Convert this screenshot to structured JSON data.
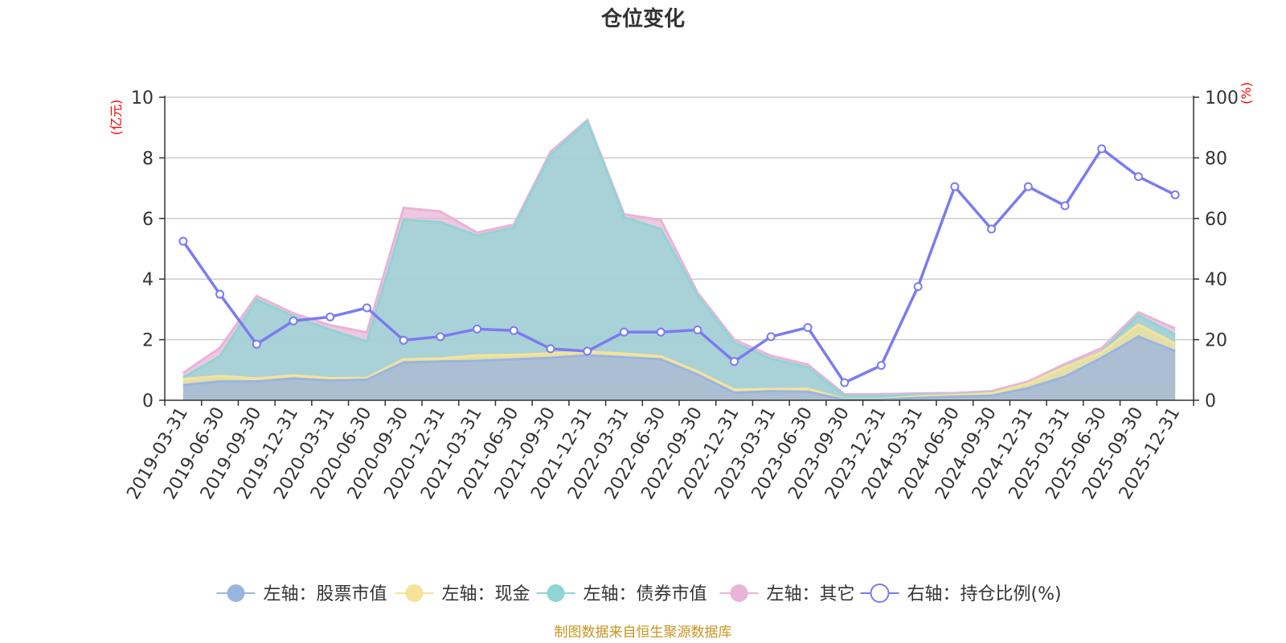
{
  "chart_data": {
    "type": "area",
    "title": "仓位变化",
    "left_axis_unit": "(亿元)",
    "right_axis_unit": "(%)",
    "ylim_left": [
      0,
      10
    ],
    "yticks_left": [
      "0",
      "2",
      "4",
      "6",
      "8",
      "10"
    ],
    "ylim_right": [
      0,
      100
    ],
    "yticks_right": [
      "0",
      "20",
      "40",
      "60",
      "80",
      "100"
    ],
    "grid": true,
    "legend_position": "bottom",
    "categories": [
      "2019-03-31",
      "2019-06-30",
      "2019-09-30",
      "2019-12-31",
      "2020-03-31",
      "2020-06-30",
      "2020-09-30",
      "2020-12-31",
      "2021-03-31",
      "2021-06-30",
      "2021-09-30",
      "2021-12-31",
      "2022-03-31",
      "2022-06-30",
      "2022-09-30",
      "2022-12-31",
      "2023-03-31",
      "2023-06-30",
      "2023-09-30",
      "2023-12-31",
      "2024-03-31",
      "2024-06-30",
      "2024-09-30",
      "2024-12-31",
      "2025-03-31",
      "2025-06-30",
      "2025-09-30",
      "2025-12-31"
    ],
    "stacked_series": [
      {
        "name": "左轴：股票市值",
        "axis": "left",
        "color": "#9ab4e0",
        "values": [
          0.5,
          0.62,
          0.62,
          0.72,
          0.65,
          0.68,
          1.25,
          1.28,
          1.3,
          1.35,
          1.4,
          1.48,
          1.42,
          1.35,
          0.85,
          0.25,
          0.3,
          0.28,
          0.02,
          0.02,
          0.08,
          0.12,
          0.15,
          0.4,
          0.78,
          1.4,
          2.1,
          1.62
        ]
      },
      {
        "name": "左轴：现金",
        "axis": "left",
        "color": "#f5e39a",
        "values": [
          0.2,
          0.18,
          0.1,
          0.1,
          0.08,
          0.06,
          0.1,
          0.1,
          0.18,
          0.15,
          0.15,
          0.12,
          0.12,
          0.1,
          0.1,
          0.1,
          0.07,
          0.1,
          0.02,
          0.02,
          0.05,
          0.05,
          0.08,
          0.15,
          0.32,
          0.18,
          0.4,
          0.25
        ]
      },
      {
        "name": "左轴：债券市值",
        "axis": "left",
        "color": "#91d4d4",
        "values": [
          0.05,
          0.65,
          2.6,
          1.95,
          1.6,
          1.2,
          4.6,
          4.5,
          3.95,
          4.2,
          6.55,
          7.6,
          4.5,
          4.2,
          2.5,
          1.55,
          1.0,
          0.7,
          0.1,
          0.1,
          0.05,
          0.02,
          0.02,
          0.0,
          0.02,
          0.02,
          0.3,
          0.3
        ]
      },
      {
        "name": "左轴：其它",
        "axis": "left",
        "color": "#e8b4d8",
        "values": [
          0.15,
          0.28,
          0.12,
          0.1,
          0.15,
          0.3,
          0.4,
          0.35,
          0.1,
          0.1,
          0.1,
          0.05,
          0.1,
          0.3,
          0.1,
          0.1,
          0.1,
          0.1,
          0.06,
          0.06,
          0.05,
          0.05,
          0.05,
          0.07,
          0.08,
          0.12,
          0.1,
          0.2
        ]
      }
    ],
    "line_series": [
      {
        "name": "右轴：持仓比例(%)",
        "axis": "right",
        "color": "#7b7bf0",
        "values": [
          52.5,
          35.0,
          18.5,
          26.2,
          27.5,
          30.5,
          19.8,
          21.0,
          23.5,
          23.0,
          17.0,
          16.2,
          22.5,
          22.5,
          23.2,
          12.8,
          21.0,
          24.0,
          5.8,
          11.5,
          37.5,
          70.5,
          56.5,
          70.5,
          64.2,
          83.0,
          73.8,
          67.8
        ]
      }
    ],
    "legend": [
      {
        "label": "左轴：股票市值",
        "color": "#9ab4e0",
        "marker": "filled-circle"
      },
      {
        "label": "左轴：现金",
        "color": "#f5e39a",
        "marker": "filled-circle"
      },
      {
        "label": "左轴：债券市值",
        "color": "#91d4d4",
        "marker": "filled-circle"
      },
      {
        "label": "左轴：其它",
        "color": "#e8b4d8",
        "marker": "filled-circle"
      },
      {
        "label": "右轴：持仓比例(%)",
        "color": "#7b7bf0",
        "marker": "hollow-circle"
      }
    ]
  },
  "source": "制图数据来自恒生聚源数据库"
}
